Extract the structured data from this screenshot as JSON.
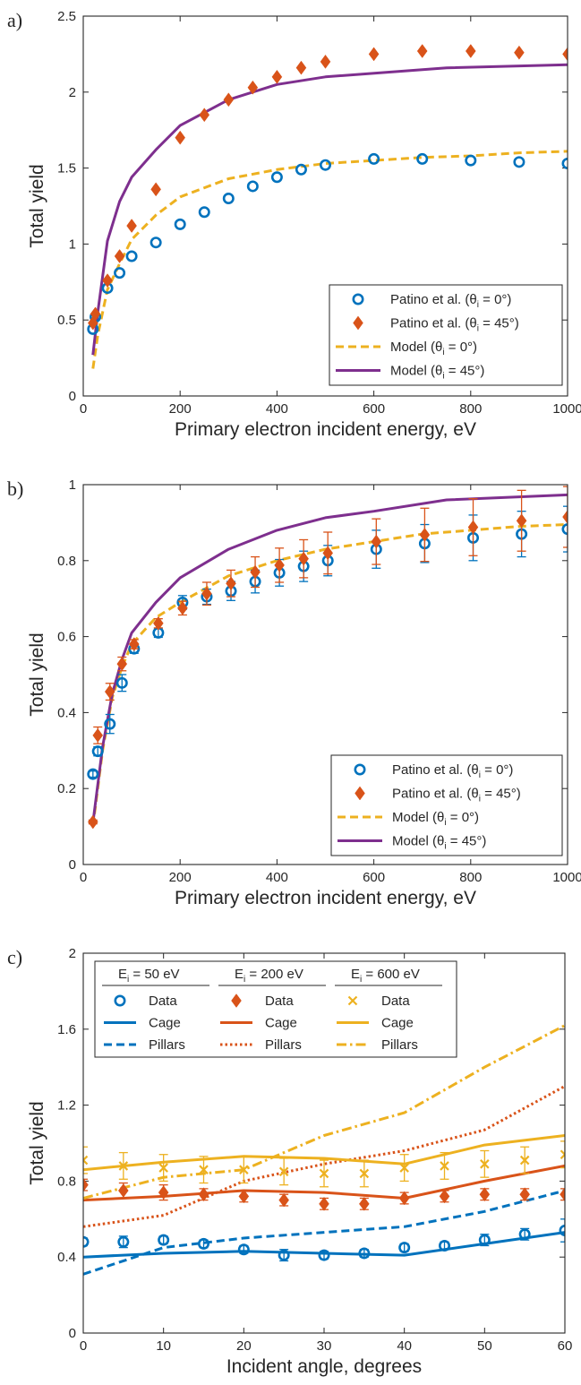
{
  "colors": {
    "blue": "#0072BD",
    "orange": "#D95319",
    "yellow": "#EDB120",
    "purple": "#7E2F8E",
    "axis": "#262626"
  },
  "chart_data": [
    {
      "panel_label": "a)",
      "type": "line",
      "xlabel": "Primary electron incident energy, eV",
      "ylabel": "Total yield",
      "xlim": [
        0,
        1000
      ],
      "ylim": [
        0,
        2.5
      ],
      "xticks": [
        0,
        200,
        400,
        600,
        800,
        1000
      ],
      "xtick_labels": [
        "0",
        "200",
        "400",
        "600",
        "800",
        "1000"
      ],
      "yticks": [
        0,
        0.5,
        1,
        1.5,
        2,
        2.5
      ],
      "ytick_labels": [
        "0",
        "0.5",
        "1",
        "1.5",
        "2",
        "2.5"
      ],
      "legend_placement": "bottom-right",
      "series": [
        {
          "name": "Patino et al. (θi = 0°)",
          "label_text": "Patino et al. (θ",
          "label_sub": "i",
          "label_tail": " = 0°)",
          "kind": "marker",
          "marker": "circle",
          "color": "blue",
          "x": [
            20,
            25,
            50,
            75,
            100,
            150,
            200,
            250,
            300,
            350,
            400,
            450,
            500,
            600,
            700,
            800,
            900,
            1000
          ],
          "y": [
            0.44,
            0.52,
            0.71,
            0.81,
            0.92,
            1.01,
            1.13,
            1.21,
            1.3,
            1.38,
            1.44,
            1.49,
            1.52,
            1.56,
            1.56,
            1.55,
            1.54,
            1.53
          ]
        },
        {
          "name": "Patino et al. (θi = 45°)",
          "label_text": "Patino et al. (θ",
          "label_sub": "i",
          "label_tail": " = 45°)",
          "kind": "marker",
          "marker": "diamond",
          "color": "orange",
          "x": [
            20,
            25,
            50,
            75,
            100,
            150,
            200,
            250,
            300,
            350,
            400,
            450,
            500,
            600,
            700,
            800,
            900,
            1000
          ],
          "y": [
            0.48,
            0.54,
            0.76,
            0.92,
            1.12,
            1.36,
            1.7,
            1.85,
            1.95,
            2.03,
            2.1,
            2.16,
            2.2,
            2.25,
            2.27,
            2.27,
            2.26,
            2.25
          ]
        },
        {
          "name": "Model (θi = 0°)",
          "label_text": "Model  (θ",
          "label_sub": "i",
          "label_tail": " = 0°)",
          "kind": "line",
          "dash": "dashed",
          "color": "yellow",
          "x": [
            20,
            30,
            50,
            75,
            100,
            150,
            200,
            300,
            400,
            500,
            600,
            700,
            800,
            900,
            1000
          ],
          "y": [
            0.18,
            0.4,
            0.7,
            0.87,
            1.03,
            1.19,
            1.31,
            1.43,
            1.49,
            1.53,
            1.55,
            1.57,
            1.58,
            1.6,
            1.61
          ]
        },
        {
          "name": "Model (θi = 45°)",
          "label_text": "Model  (θ",
          "label_sub": "i",
          "label_tail": " = 45°)",
          "kind": "line",
          "dash": "solid",
          "color": "purple",
          "x": [
            20,
            30,
            50,
            75,
            100,
            150,
            200,
            300,
            400,
            500,
            750,
            1000
          ],
          "y": [
            0.27,
            0.55,
            1.02,
            1.28,
            1.44,
            1.62,
            1.78,
            1.95,
            2.05,
            2.1,
            2.16,
            2.18
          ]
        }
      ]
    },
    {
      "panel_label": "b)",
      "type": "line",
      "xlabel": "Primary electron incident energy, eV",
      "ylabel": "Total yield",
      "xlim": [
        0,
        1000
      ],
      "ylim": [
        0,
        1
      ],
      "xticks": [
        0,
        200,
        400,
        600,
        800,
        1000
      ],
      "xtick_labels": [
        "0",
        "200",
        "400",
        "600",
        "800",
        "1000"
      ],
      "yticks": [
        0,
        0.2,
        0.4,
        0.6,
        0.8,
        1
      ],
      "ytick_labels": [
        "0",
        "0.2",
        "0.4",
        "0.6",
        "0.8",
        "1"
      ],
      "legend_placement": "bottom-right",
      "series": [
        {
          "name": "Patino et al. (θi = 0°)",
          "label_text": "Patino et al. (θ",
          "label_sub": "i",
          "label_tail": " = 0°)",
          "kind": "marker",
          "marker": "circle",
          "color": "blue",
          "x": [
            20,
            30,
            55,
            80,
            105,
            155,
            205,
            255,
            305,
            355,
            405,
            455,
            505,
            605,
            705,
            805,
            905,
            1000
          ],
          "y": [
            0.238,
            0.298,
            0.37,
            0.478,
            0.568,
            0.61,
            0.69,
            0.705,
            0.72,
            0.745,
            0.768,
            0.785,
            0.8,
            0.83,
            0.845,
            0.86,
            0.87,
            0.883
          ],
          "err": [
            0.008,
            0.012,
            0.025,
            0.022,
            0.012,
            0.012,
            0.018,
            0.02,
            0.025,
            0.03,
            0.035,
            0.04,
            0.04,
            0.05,
            0.05,
            0.06,
            0.06,
            0.06
          ]
        },
        {
          "name": "Patino et al. (θi = 45°)",
          "label_text": "Patino et al. (θ",
          "label_sub": "i",
          "label_tail": " = 45°)",
          "kind": "marker",
          "marker": "diamond",
          "color": "orange",
          "x": [
            20,
            30,
            55,
            80,
            105,
            155,
            205,
            255,
            305,
            355,
            405,
            455,
            505,
            605,
            705,
            805,
            905,
            1000
          ],
          "y": [
            0.112,
            0.34,
            0.455,
            0.528,
            0.58,
            0.635,
            0.675,
            0.713,
            0.74,
            0.77,
            0.788,
            0.805,
            0.82,
            0.85,
            0.868,
            0.888,
            0.905,
            0.915
          ],
          "err": [
            0.005,
            0.022,
            0.022,
            0.018,
            0.012,
            0.012,
            0.018,
            0.03,
            0.035,
            0.04,
            0.045,
            0.05,
            0.055,
            0.06,
            0.07,
            0.075,
            0.08,
            0.08
          ]
        },
        {
          "name": "Model (θi = 0°)",
          "label_text": "Model  (θ",
          "label_sub": "i",
          "label_tail": " = 0°)",
          "kind": "line",
          "dash": "dashed",
          "color": "yellow",
          "x": [
            20,
            40,
            60,
            80,
            100,
            150,
            200,
            300,
            400,
            500,
            600,
            700,
            800,
            900,
            1000
          ],
          "y": [
            0.1,
            0.3,
            0.44,
            0.52,
            0.58,
            0.65,
            0.69,
            0.76,
            0.8,
            0.83,
            0.85,
            0.87,
            0.88,
            0.89,
            0.895
          ]
        },
        {
          "name": "Model (θi = 45°)",
          "label_text": "Model  (θ",
          "label_sub": "i",
          "label_tail": " = 45°)",
          "kind": "line",
          "dash": "solid",
          "color": "purple",
          "x": [
            20,
            40,
            60,
            80,
            100,
            150,
            200,
            300,
            400,
            500,
            600,
            750,
            1000
          ],
          "y": [
            0.11,
            0.31,
            0.45,
            0.54,
            0.61,
            0.69,
            0.755,
            0.83,
            0.88,
            0.913,
            0.93,
            0.96,
            0.973
          ]
        }
      ]
    },
    {
      "panel_label": "c)",
      "type": "line",
      "xlabel": "Incident angle, degrees",
      "ylabel": "Total yield",
      "xlim": [
        0,
        60
      ],
      "ylim": [
        0,
        2
      ],
      "xticks": [
        0,
        10,
        20,
        30,
        40,
        50,
        60
      ],
      "xtick_labels": [
        "0",
        "10",
        "20",
        "30",
        "40",
        "50",
        "60"
      ],
      "yticks": [
        0,
        0.4,
        0.8,
        1.2,
        1.6,
        2
      ],
      "ytick_labels": [
        "0",
        "0.4",
        "0.8",
        "1.2",
        "1.6",
        "2"
      ],
      "legend_placement": "top-left",
      "legend_groups": [
        {
          "header": "E",
          "header_sub": "i",
          "header_tail": " = 50 eV"
        },
        {
          "header": "E",
          "header_sub": "i",
          "header_tail": " = 200 eV"
        },
        {
          "header": "E",
          "header_sub": "i",
          "header_tail": " = 600 eV"
        }
      ],
      "series": [
        {
          "name": "Data",
          "group": 0,
          "kind": "marker",
          "marker": "circle",
          "color": "blue",
          "x": [
            0,
            5,
            10,
            15,
            20,
            25,
            30,
            35,
            40,
            45,
            50,
            55,
            60
          ],
          "y": [
            0.48,
            0.48,
            0.49,
            0.47,
            0.44,
            0.41,
            0.41,
            0.42,
            0.45,
            0.46,
            0.49,
            0.52,
            0.54
          ],
          "err": [
            0.02,
            0.03,
            0.02,
            0.02,
            0.02,
            0.03,
            0.02,
            0.02,
            0.02,
            0.02,
            0.03,
            0.03,
            0.06
          ]
        },
        {
          "name": "Cage",
          "group": 0,
          "kind": "line",
          "dash": "solid",
          "color": "blue",
          "x": [
            0,
            10,
            20,
            30,
            40,
            50,
            60
          ],
          "y": [
            0.4,
            0.42,
            0.43,
            0.42,
            0.41,
            0.47,
            0.53
          ]
        },
        {
          "name": "Pillars",
          "group": 0,
          "kind": "line",
          "dash": "dashed",
          "color": "blue",
          "x": [
            0,
            10,
            20,
            30,
            40,
            50,
            60
          ],
          "y": [
            0.31,
            0.45,
            0.5,
            0.53,
            0.56,
            0.64,
            0.75
          ]
        },
        {
          "name": "Data",
          "group": 1,
          "kind": "marker",
          "marker": "diamond",
          "color": "orange",
          "x": [
            0,
            5,
            10,
            15,
            20,
            25,
            30,
            35,
            40,
            45,
            50,
            55,
            60
          ],
          "y": [
            0.78,
            0.75,
            0.74,
            0.73,
            0.72,
            0.7,
            0.68,
            0.68,
            0.71,
            0.72,
            0.73,
            0.73,
            0.73
          ],
          "err": [
            0.03,
            0.04,
            0.04,
            0.03,
            0.03,
            0.03,
            0.03,
            0.03,
            0.03,
            0.03,
            0.03,
            0.03,
            0.03
          ]
        },
        {
          "name": "Cage",
          "group": 1,
          "kind": "line",
          "dash": "solid",
          "color": "orange",
          "x": [
            0,
            10,
            20,
            30,
            40,
            50,
            60
          ],
          "y": [
            0.7,
            0.72,
            0.75,
            0.74,
            0.71,
            0.8,
            0.88
          ]
        },
        {
          "name": "Pillars",
          "group": 1,
          "kind": "line",
          "dash": "dotted",
          "color": "orange",
          "x": [
            0,
            10,
            20,
            30,
            40,
            50,
            60
          ],
          "y": [
            0.56,
            0.62,
            0.8,
            0.89,
            0.96,
            1.07,
            1.3
          ]
        },
        {
          "name": "Data",
          "group": 2,
          "kind": "marker",
          "marker": "x",
          "color": "yellow",
          "x": [
            0,
            5,
            10,
            15,
            20,
            25,
            30,
            35,
            40,
            45,
            50,
            55,
            60
          ],
          "y": [
            0.91,
            0.88,
            0.87,
            0.86,
            0.86,
            0.85,
            0.84,
            0.84,
            0.87,
            0.88,
            0.89,
            0.91,
            0.94
          ],
          "err": [
            0.07,
            0.07,
            0.07,
            0.07,
            0.07,
            0.07,
            0.07,
            0.07,
            0.07,
            0.07,
            0.07,
            0.07,
            0.07
          ]
        },
        {
          "name": "Cage",
          "group": 2,
          "kind": "line",
          "dash": "solid",
          "color": "yellow",
          "x": [
            0,
            10,
            20,
            30,
            40,
            50,
            60
          ],
          "y": [
            0.86,
            0.9,
            0.93,
            0.92,
            0.89,
            0.99,
            1.04
          ]
        },
        {
          "name": "Pillars",
          "group": 2,
          "kind": "line",
          "dash": "dashdot",
          "color": "yellow",
          "x": [
            0,
            10,
            20,
            30,
            40,
            50,
            60
          ],
          "y": [
            0.71,
            0.82,
            0.86,
            1.04,
            1.16,
            1.4,
            1.62
          ]
        }
      ]
    }
  ]
}
